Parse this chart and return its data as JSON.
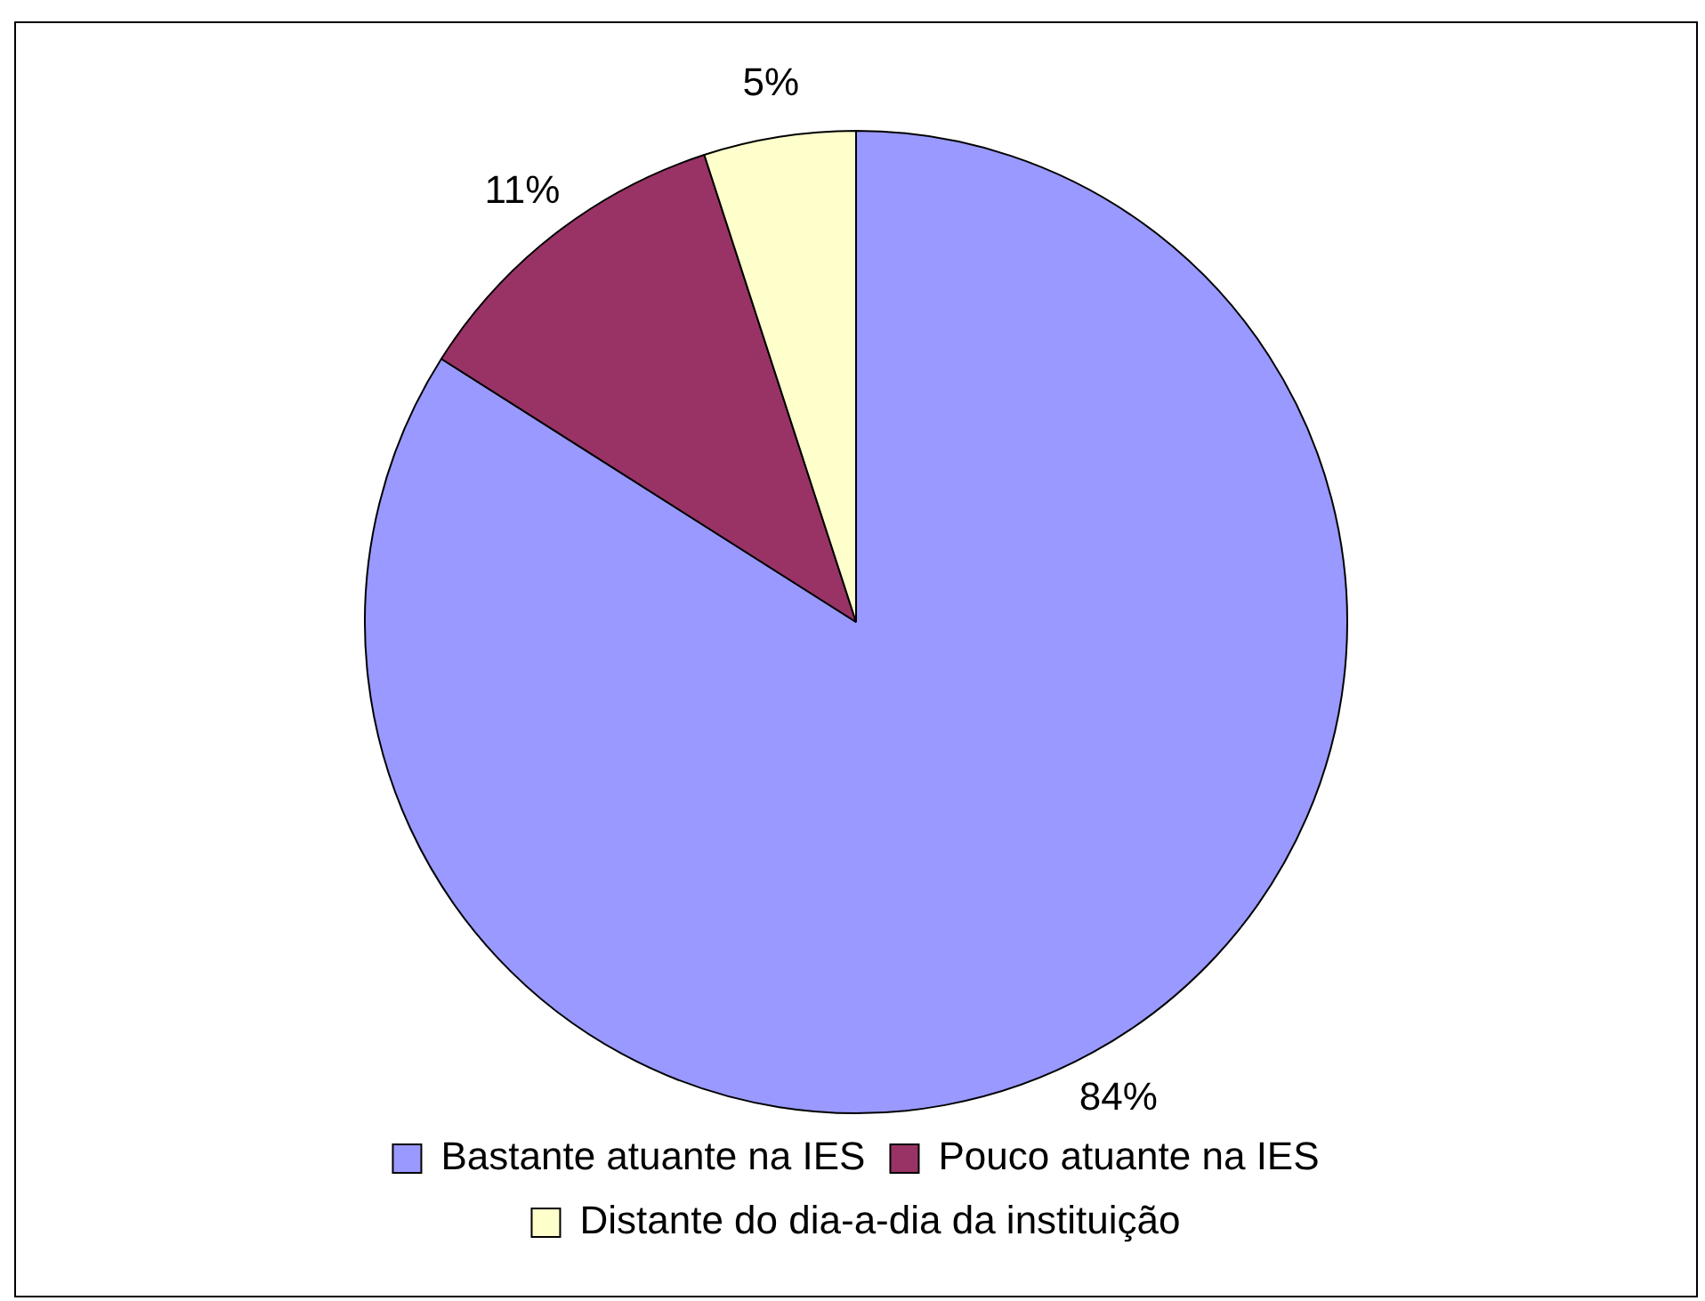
{
  "chart_data": {
    "type": "pie",
    "categories": [
      "Bastante atuante na IES",
      "Pouco atuante na IES",
      "Distante do dia-a-dia da instituição"
    ],
    "values": [
      84,
      11,
      5
    ],
    "colors": [
      "#9999ff",
      "#993366",
      "#ffffcc"
    ],
    "value_labels": [
      "84%",
      "11%",
      "5%"
    ],
    "legend": "bottom"
  }
}
